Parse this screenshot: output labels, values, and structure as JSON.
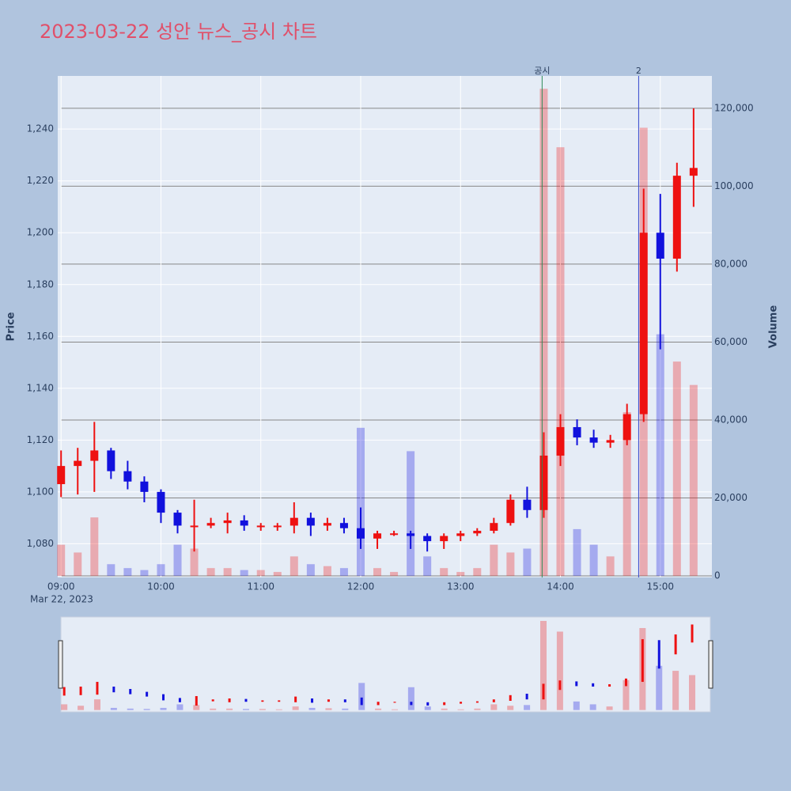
{
  "chart_data": {
    "type": "candlestick",
    "title": "2023-03-22 성안 뉴스_공시 차트",
    "y_title": "Price",
    "y2_title": "Volume",
    "x_date_label": "Mar 22, 2023",
    "increasing_color": "#ee1111",
    "decreasing_color": "#1111dd",
    "x": [
      "09:00",
      "09:10",
      "09:20",
      "09:30",
      "09:40",
      "09:50",
      "10:00",
      "10:10",
      "10:20",
      "10:30",
      "10:40",
      "10:50",
      "11:00",
      "11:10",
      "11:20",
      "11:30",
      "11:40",
      "11:50",
      "12:00",
      "12:10",
      "12:20",
      "12:30",
      "12:40",
      "12:50",
      "13:00",
      "13:10",
      "13:20",
      "13:30",
      "13:40",
      "13:50",
      "14:00",
      "14:10",
      "14:20",
      "14:30",
      "14:40",
      "14:50",
      "15:00",
      "15:10",
      "15:20"
    ],
    "open": [
      1103,
      1110,
      1112,
      1116,
      1108,
      1104,
      1100,
      1092,
      1087,
      1087,
      1088,
      1089,
      1087,
      1087,
      1087,
      1090,
      1087,
      1088,
      1086,
      1082,
      1084,
      1084,
      1083,
      1081,
      1083,
      1084,
      1085,
      1088,
      1097,
      1093,
      1114,
      1125,
      1121,
      1119,
      1120,
      1130,
      1200,
      1190,
      1222
    ],
    "high": [
      1116,
      1117,
      1127,
      1117,
      1112,
      1106,
      1101,
      1093,
      1097,
      1090,
      1092,
      1091,
      1088,
      1088,
      1096,
      1092,
      1090,
      1090,
      1094,
      1085,
      1085,
      1085,
      1084,
      1084,
      1085,
      1086,
      1090,
      1099,
      1102,
      1123,
      1130,
      1128,
      1124,
      1122,
      1134,
      1217,
      1215,
      1227,
      1248
    ],
    "low": [
      1098,
      1099,
      1100,
      1105,
      1101,
      1096,
      1088,
      1084,
      1077,
      1086,
      1084,
      1085,
      1085,
      1085,
      1084,
      1083,
      1085,
      1084,
      1078,
      1078,
      1083,
      1078,
      1077,
      1078,
      1081,
      1083,
      1084,
      1087,
      1090,
      1090,
      1110,
      1118,
      1117,
      1117,
      1118,
      1127,
      1155,
      1185,
      1210
    ],
    "close": [
      1110,
      1112,
      1116,
      1108,
      1104,
      1100,
      1092,
      1087,
      1087,
      1088,
      1089,
      1087,
      1087,
      1087,
      1090,
      1087,
      1088,
      1086,
      1082,
      1084,
      1084,
      1083,
      1081,
      1083,
      1084,
      1085,
      1088,
      1097,
      1093,
      1114,
      1125,
      1121,
      1119,
      1120,
      1130,
      1200,
      1190,
      1222,
      1225
    ],
    "volume": [
      8000,
      6000,
      15000,
      3000,
      2000,
      1500,
      3000,
      8000,
      7000,
      2000,
      2000,
      1500,
      1500,
      1000,
      5000,
      3000,
      2500,
      2000,
      38000,
      2000,
      1000,
      32000,
      5000,
      2000,
      1000,
      2000,
      8000,
      6000,
      7000,
      125000,
      110000,
      12000,
      8000,
      5000,
      42000,
      115000,
      62000,
      55000,
      49000
    ],
    "xlim": [
      "08:58",
      "15:31"
    ],
    "xticks": [
      "09:00",
      "10:00",
      "11:00",
      "12:00",
      "13:00",
      "14:00",
      "15:00"
    ],
    "ylim": [
      1067,
      1260.5
    ],
    "yticks": [
      {
        "value": 1080,
        "label": "1,080"
      },
      {
        "value": 1100,
        "label": "1,100"
      },
      {
        "value": 1120,
        "label": "1,120"
      },
      {
        "value": 1140,
        "label": "1,140"
      },
      {
        "value": 1160,
        "label": "1,160"
      },
      {
        "value": 1180,
        "label": "1,180"
      },
      {
        "value": 1200,
        "label": "1,200"
      },
      {
        "value": 1220,
        "label": "1,220"
      },
      {
        "value": 1240,
        "label": "1,240"
      }
    ],
    "y2lim": [
      -400,
      128300
    ],
    "y2ticks": [
      0,
      {
        "value": 20000,
        "label": "20,000"
      },
      {
        "value": 40000,
        "label": "40,000"
      },
      {
        "value": 60000,
        "label": "60,000"
      },
      {
        "value": 80000,
        "label": "80,000"
      },
      {
        "value": 100000,
        "label": "100,000"
      },
      {
        "value": 120000,
        "label": "120,000"
      }
    ],
    "annotations": [
      {
        "x": "13:49",
        "text": "공시",
        "color": "#2e8b57"
      },
      {
        "x": "14:47",
        "text": "2",
        "color": "#3344cc"
      }
    ],
    "grid": true
  }
}
